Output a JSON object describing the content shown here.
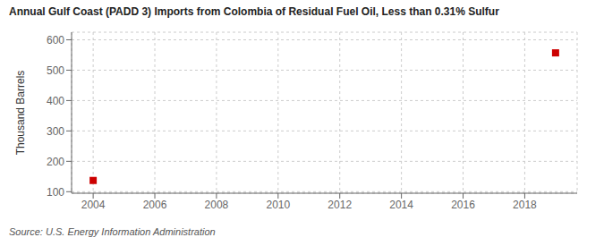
{
  "chart_data": {
    "type": "scatter",
    "title": "Annual Gulf Coast (PADD 3) Imports from Colombia of Residual Fuel Oil, Less than 0.31% Sulfur",
    "y_label": "Thousand Barrels",
    "annotations": [
      "Source: U.S. Energy Information Administration"
    ],
    "x": [
      2004,
      2019
    ],
    "values": [
      137,
      557
    ],
    "color": "#cc0000",
    "marker": "square",
    "xlim": [
      2003.3,
      2019.7
    ],
    "ylim": [
      95,
      625
    ],
    "xticks": [
      2004,
      2006,
      2008,
      2010,
      2012,
      2014,
      2016,
      2018
    ],
    "yticks": [
      100,
      200,
      300,
      400,
      500,
      600
    ],
    "grid": true
  }
}
